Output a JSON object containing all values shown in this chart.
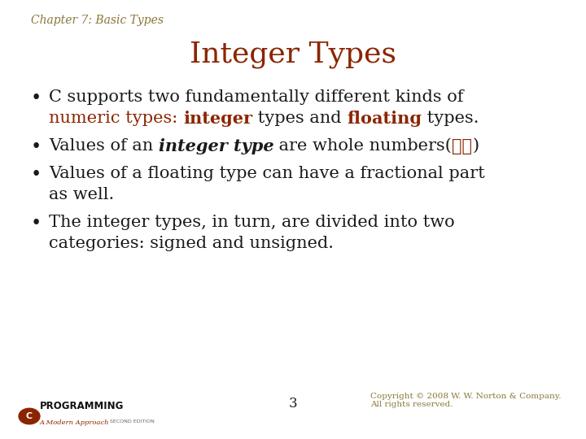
{
  "background_color": "#ffffff",
  "header_text": "Chapter 7: Basic Types",
  "header_color": "#8B7536",
  "header_fontsize": 10,
  "title_text": "Integer Types",
  "title_color": "#8B2500",
  "title_fontsize": 26,
  "bullet_color": "#1a1a1a",
  "bullet_fontsize": 15,
  "red_color": "#8B2500",
  "page_number": "3",
  "copyright_text": "Copyright © 2008 W. W. Norton & Company.\nAll rights reserved.",
  "footer_color": "#8B7536",
  "footer_fontsize": 7.5
}
